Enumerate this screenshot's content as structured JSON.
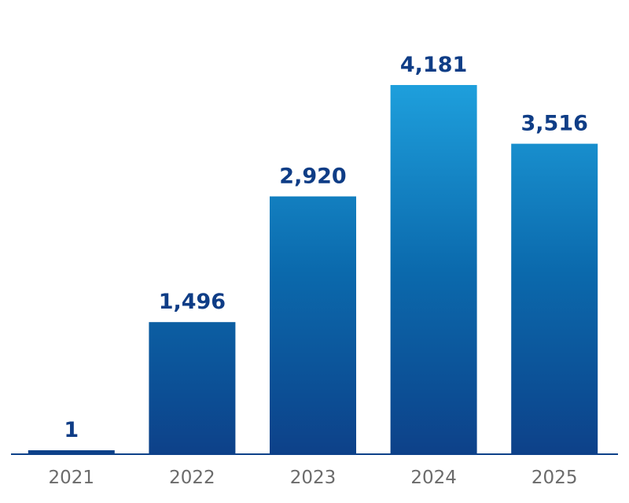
{
  "chart_data": {
    "type": "bar",
    "title": "",
    "xlabel": "",
    "ylabel": "",
    "categories": [
      "2021",
      "2022",
      "2023",
      "2024",
      "2025"
    ],
    "values": [
      1,
      1496,
      2920,
      4181,
      3516
    ],
    "data_labels": [
      "1",
      "1,496",
      "2,920",
      "4,181",
      "3,516"
    ],
    "ylim": [
      0,
      4181
    ],
    "grid": false,
    "legend": "none"
  },
  "colors": {
    "bar_top": "#1e9fdc",
    "bar_mid": "#0b6aad",
    "bar_bottom": "#0d4189",
    "value_label": "#0f3d86",
    "tick_label": "#6b6b6b",
    "axis": "#0d4189"
  }
}
